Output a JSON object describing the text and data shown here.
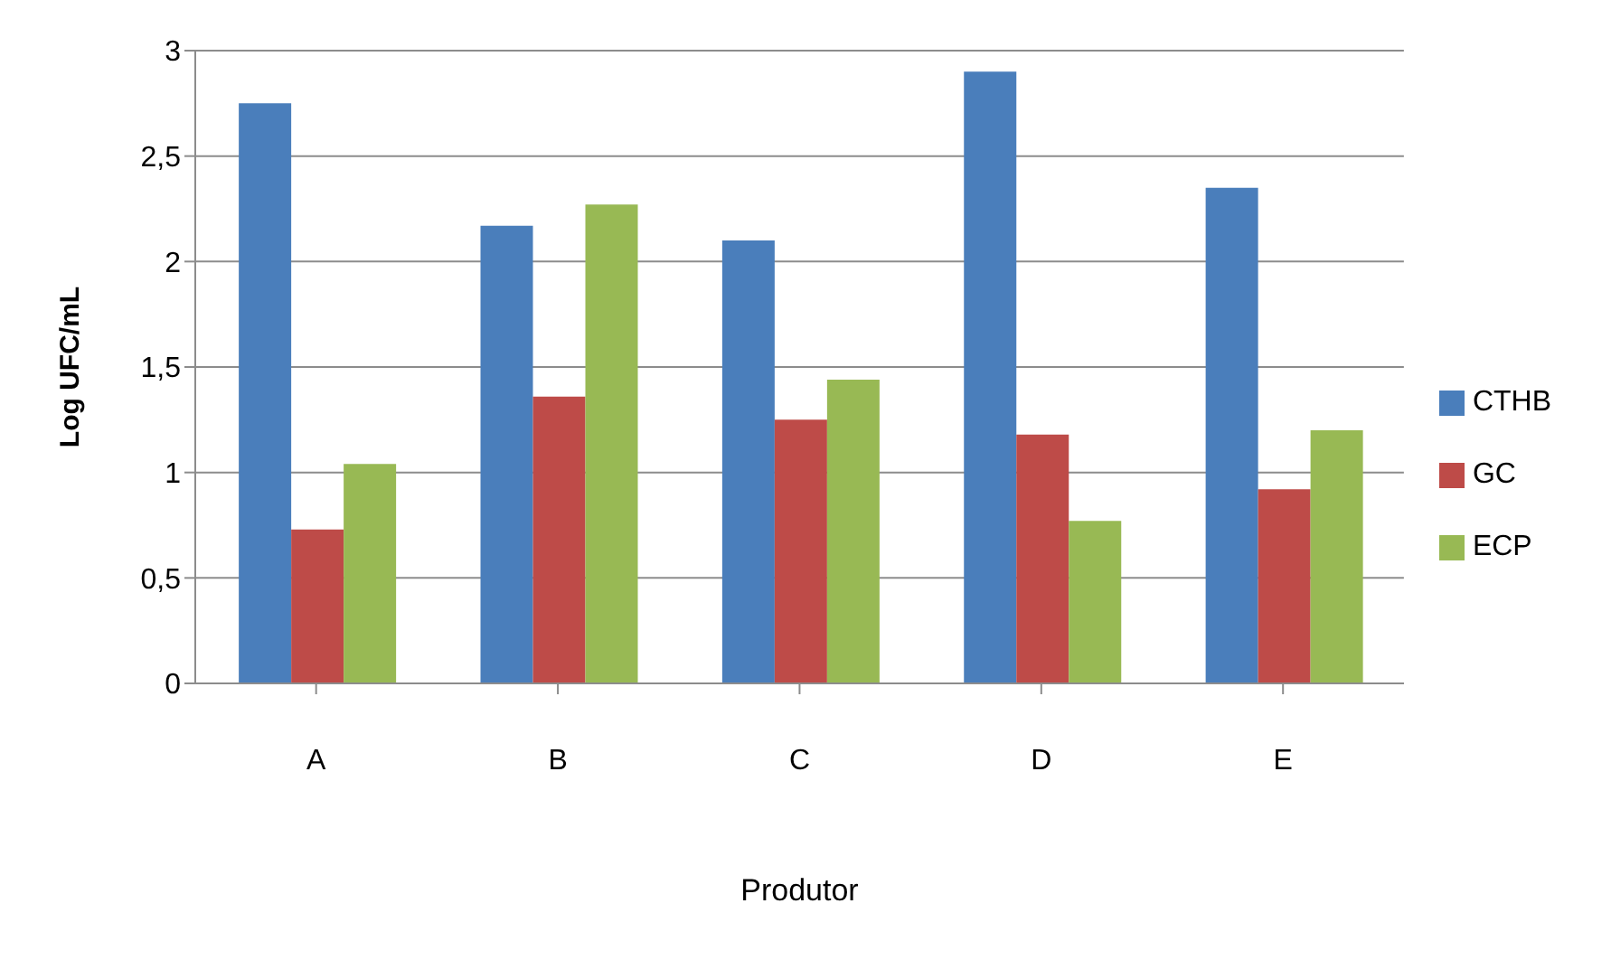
{
  "chart_data": {
    "type": "bar",
    "xlabel": "Produtor",
    "ylabel": "Log UFC/mL",
    "categories": [
      "A",
      "B",
      "C",
      "D",
      "E"
    ],
    "series": [
      {
        "name": "CTHB",
        "color": "#4a7ebb",
        "values": [
          2.75,
          2.17,
          2.1,
          2.9,
          2.35
        ]
      },
      {
        "name": "GC",
        "color": "#be4b48",
        "values": [
          0.73,
          1.36,
          1.25,
          1.18,
          0.92
        ]
      },
      {
        "name": "ECP",
        "color": "#98b954",
        "values": [
          1.04,
          2.27,
          1.44,
          0.77,
          1.2
        ]
      }
    ],
    "ylim": [
      0,
      3
    ],
    "yticks": [
      0,
      {
        "value": 0.5,
        "label": "0,5"
      },
      1,
      {
        "value": 1.5,
        "label": "1,5"
      },
      2,
      {
        "value": 2.5,
        "label": "2,5"
      },
      3
    ],
    "grid": "y",
    "legend": "right"
  }
}
